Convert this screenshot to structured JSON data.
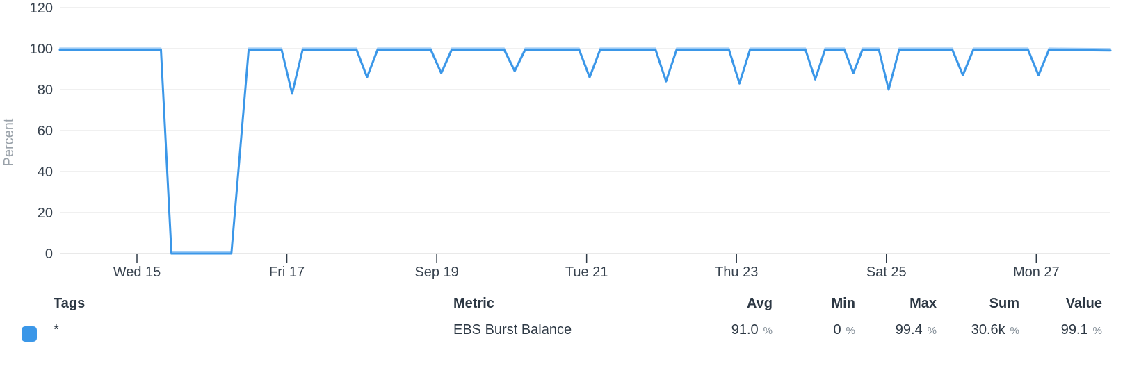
{
  "chart_data": {
    "type": "line",
    "title": "",
    "xlabel": "",
    "ylabel": "Percent",
    "ylim": [
      0,
      120
    ],
    "y_ticks": [
      0,
      20,
      40,
      60,
      80,
      100,
      120
    ],
    "grid": "horizontal",
    "legend_position": "bottom-table",
    "axis": {
      "x_range_days": [
        0,
        14.02
      ],
      "x_ticks": [
        {
          "day": 1.03,
          "label": "Wed 15"
        },
        {
          "day": 3.03,
          "label": "Fri 17"
        },
        {
          "day": 5.03,
          "label": "Sep 19"
        },
        {
          "day": 7.03,
          "label": "Tue 21"
        },
        {
          "day": 9.03,
          "label": "Thu 23"
        },
        {
          "day": 11.03,
          "label": "Sat 25"
        },
        {
          "day": 13.03,
          "label": "Mon 27"
        }
      ]
    },
    "series": [
      {
        "name": "EBS Burst Balance",
        "tags": "*",
        "color": "#3b97e8",
        "ghost_color": "#8ec3f5",
        "points": [
          [
            0.0,
            99.4
          ],
          [
            1.35,
            99.4
          ],
          [
            1.49,
            0
          ],
          [
            2.29,
            0
          ],
          [
            2.52,
            99.4
          ],
          [
            2.96,
            99.4
          ],
          [
            3.1,
            78
          ],
          [
            3.24,
            99.4
          ],
          [
            3.96,
            99.4
          ],
          [
            4.1,
            86
          ],
          [
            4.24,
            99.4
          ],
          [
            4.95,
            99.4
          ],
          [
            5.09,
            88
          ],
          [
            5.23,
            99.4
          ],
          [
            5.93,
            99.4
          ],
          [
            6.07,
            89
          ],
          [
            6.21,
            99.4
          ],
          [
            6.93,
            99.4
          ],
          [
            7.07,
            86
          ],
          [
            7.21,
            99.4
          ],
          [
            7.95,
            99.4
          ],
          [
            8.09,
            84
          ],
          [
            8.23,
            99.4
          ],
          [
            8.93,
            99.4
          ],
          [
            9.07,
            83
          ],
          [
            9.21,
            99.4
          ],
          [
            9.95,
            99.4
          ],
          [
            10.08,
            85
          ],
          [
            10.21,
            99.4
          ],
          [
            10.47,
            99.4
          ],
          [
            10.59,
            88
          ],
          [
            10.71,
            99.4
          ],
          [
            10.93,
            99.4
          ],
          [
            11.06,
            80
          ],
          [
            11.2,
            99.4
          ],
          [
            11.91,
            99.4
          ],
          [
            12.05,
            87
          ],
          [
            12.19,
            99.4
          ],
          [
            12.92,
            99.4
          ],
          [
            13.06,
            87
          ],
          [
            13.2,
            99.4
          ],
          [
            14.02,
            99.1
          ]
        ]
      }
    ]
  },
  "legend": {
    "headers": [
      "Tags",
      "Metric",
      "Avg",
      "Min",
      "Max",
      "Sum",
      "Value"
    ],
    "row": {
      "tag": "*",
      "metric": "EBS Burst Balance",
      "avg": "91.0",
      "min": "0",
      "max": "99.4",
      "sum": "30.6k",
      "value": "99.1",
      "unit": "%",
      "color": "#3b97e8"
    }
  },
  "colors": {
    "line": "#3b97e8",
    "grid": "#ebebeb",
    "zero_line": "#e2e2e2",
    "axis_text": "#37424e",
    "ylabel_text": "#99a1a9",
    "table_text": "#2d3844",
    "unit_text": "#7e8993"
  }
}
